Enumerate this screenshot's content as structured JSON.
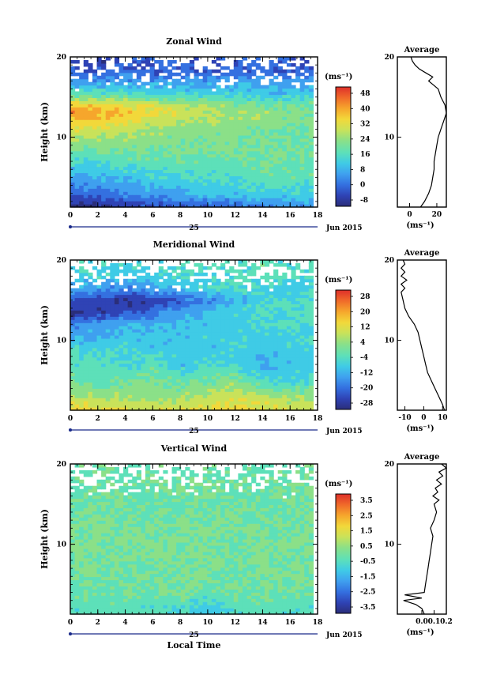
{
  "chart_data": [
    {
      "id": "zonal",
      "type": "heatmap",
      "title": "Zonal Wind",
      "ylabel": "Height (km)",
      "xlim": [
        0,
        18
      ],
      "ylim": [
        1.3,
        20
      ],
      "xticks": [
        "0",
        "2",
        "4",
        "6",
        "8",
        "10",
        "12",
        "14",
        "16",
        "18"
      ],
      "yticks": [
        "10",
        "20"
      ],
      "date_label": "25",
      "date_right": "Jun 2015",
      "unit": "(ms⁻¹)",
      "colorbar_ticks": [
        "48",
        "40",
        "32",
        "24",
        "16",
        "8",
        "0",
        "-8"
      ],
      "colorbar_range": [
        -8,
        48
      ],
      "avg": {
        "title": "Average",
        "xlim": [
          -9,
          27
        ],
        "xticks": [
          "0",
          "20"
        ],
        "unit": "(ms⁻¹)",
        "yticks": [
          "10",
          "20"
        ],
        "profile": [
          [
            1.3,
            8
          ],
          [
            2,
            11
          ],
          [
            3,
            14
          ],
          [
            4,
            16
          ],
          [
            5,
            17
          ],
          [
            6,
            18
          ],
          [
            7,
            18
          ],
          [
            8,
            19
          ],
          [
            9,
            20
          ],
          [
            10,
            21
          ],
          [
            11,
            23
          ],
          [
            12,
            25
          ],
          [
            13,
            27
          ],
          [
            14,
            26
          ],
          [
            15,
            23
          ],
          [
            16,
            21
          ],
          [
            17,
            14
          ],
          [
            17.5,
            17
          ],
          [
            18,
            12
          ],
          [
            18.5,
            7
          ],
          [
            19,
            4
          ],
          [
            19.5,
            2
          ],
          [
            20,
            1
          ]
        ]
      },
      "field": [
        [
          1.5,
          -4,
          -4,
          -2,
          0,
          2,
          2,
          4,
          6,
          8,
          8
        ],
        [
          3,
          2,
          4,
          6,
          8,
          10,
          12,
          12,
          14,
          14,
          14
        ],
        [
          5,
          8,
          10,
          12,
          14,
          16,
          16,
          16,
          18,
          18,
          18
        ],
        [
          8,
          18,
          18,
          20,
          20,
          20,
          20,
          20,
          20,
          20,
          20
        ],
        [
          11,
          30,
          28,
          26,
          24,
          22,
          22,
          22,
          20,
          20,
          20
        ],
        [
          13,
          38,
          36,
          34,
          30,
          28,
          26,
          24,
          24,
          22,
          22
        ],
        [
          14,
          34,
          32,
          30,
          28,
          26,
          24,
          22,
          20,
          20,
          20
        ],
        [
          15.5,
          18,
          16,
          16,
          14,
          14,
          14,
          14,
          12,
          12,
          12
        ],
        [
          17,
          6,
          8,
          8,
          8,
          8,
          8,
          8,
          8,
          8,
          8
        ],
        [
          18,
          4,
          2,
          4,
          2,
          2,
          2,
          4,
          2,
          2,
          4
        ],
        [
          19.5,
          -2,
          -2,
          0,
          2,
          4,
          -2,
          2,
          4,
          2,
          0
        ]
      ]
    },
    {
      "id": "meridional",
      "type": "heatmap",
      "title": "Meridional Wind",
      "ylabel": "Height (km)",
      "xlim": [
        0,
        18
      ],
      "ylim": [
        1.3,
        20
      ],
      "xticks": [
        "0",
        "2",
        "4",
        "6",
        "8",
        "10",
        "12",
        "14",
        "16",
        "18"
      ],
      "yticks": [
        "10",
        "20"
      ],
      "date_label": "25",
      "date_right": "Jun 2015",
      "unit": "(ms⁻¹)",
      "colorbar_ticks": [
        "28",
        "20",
        "12",
        "4",
        "-4",
        "-12",
        "-20",
        "-28"
      ],
      "colorbar_range": [
        -28,
        28
      ],
      "avg": {
        "title": "Average",
        "xlim": [
          -14,
          12
        ],
        "xticks": [
          "-10",
          "0",
          "10"
        ],
        "unit": "(ms⁻¹)",
        "yticks": [
          "10",
          "20"
        ],
        "profile": [
          [
            1.3,
            11
          ],
          [
            2,
            10
          ],
          [
            3,
            8
          ],
          [
            4,
            6
          ],
          [
            5,
            4
          ],
          [
            6,
            2
          ],
          [
            7,
            1
          ],
          [
            8,
            0
          ],
          [
            9,
            -1
          ],
          [
            10,
            -2
          ],
          [
            11,
            -3
          ],
          [
            12,
            -5
          ],
          [
            13,
            -8
          ],
          [
            14,
            -10
          ],
          [
            15,
            -11
          ],
          [
            16,
            -12
          ],
          [
            16.5,
            -10
          ],
          [
            17,
            -12
          ],
          [
            17.5,
            -9
          ],
          [
            18,
            -12
          ],
          [
            18.5,
            -10
          ],
          [
            19,
            -12
          ],
          [
            19.5,
            -10
          ],
          [
            20,
            -11
          ]
        ]
      },
      "field": [
        [
          1.5,
          12,
          10,
          8,
          8,
          8,
          10,
          12,
          10,
          8,
          8
        ],
        [
          3,
          6,
          4,
          4,
          2,
          4,
          6,
          8,
          6,
          4,
          4
        ],
        [
          5,
          0,
          -2,
          0,
          2,
          -2,
          0,
          2,
          -4,
          -6,
          -4
        ],
        [
          7,
          -4,
          -2,
          -6,
          -2,
          -8,
          -4,
          -6,
          -10,
          -8,
          -6
        ],
        [
          9,
          -6,
          -6,
          -4,
          -8,
          -6,
          -8,
          -6,
          -8,
          -6,
          -6
        ],
        [
          10.5,
          -10,
          -10,
          -8,
          -8,
          -8,
          -6,
          -6,
          -6,
          -6,
          -6
        ],
        [
          12,
          -14,
          -12,
          -10,
          -10,
          -8,
          -8,
          -6,
          -6,
          -4,
          -4
        ],
        [
          13.5,
          -24,
          -22,
          -20,
          -16,
          -12,
          -8,
          -6,
          -4,
          -4,
          -4
        ],
        [
          15,
          -20,
          -22,
          -24,
          -22,
          -18,
          -14,
          -10,
          -6,
          -4,
          -2
        ],
        [
          16.5,
          -10,
          -12,
          -14,
          -12,
          -8,
          -6,
          -4,
          -6,
          -8,
          -6
        ],
        [
          18,
          -8,
          -6,
          -8,
          -6,
          -4,
          -6,
          -4,
          -2,
          -4,
          -4
        ],
        [
          19.5,
          -6,
          -4,
          -6,
          -4,
          -4,
          -2,
          -4,
          -2,
          -4,
          -2
        ]
      ]
    },
    {
      "id": "vertical",
      "type": "heatmap",
      "title": "Vertical Wind",
      "ylabel": "Height (km)",
      "xlabel": "Local Time",
      "xlim": [
        0,
        18
      ],
      "ylim": [
        1.3,
        20
      ],
      "xticks": [
        "0",
        "2",
        "4",
        "6",
        "8",
        "10",
        "12",
        "14",
        "16",
        "18"
      ],
      "yticks": [
        "10",
        "20"
      ],
      "date_label": "25",
      "date_right": "Jun 2015",
      "unit": "(ms⁻¹)",
      "colorbar_ticks": [
        "3.5",
        "2.5",
        "1.5",
        "0.5",
        "-0.5",
        "-1.5",
        "-2.5",
        "-3.5"
      ],
      "colorbar_range": [
        -4,
        4
      ],
      "avg": {
        "title": "Average",
        "xlim": [
          -0.2,
          0.2
        ],
        "xticks": [
          "0.0",
          "0.1",
          "0.2"
        ],
        "unit": "(ms⁻¹)",
        "yticks": [
          "10",
          "20"
        ],
        "profile": [
          [
            1.3,
            0.02
          ],
          [
            2,
            0.0
          ],
          [
            2.5,
            -0.05
          ],
          [
            3,
            -0.15
          ],
          [
            3.3,
            0.0
          ],
          [
            3.7,
            -0.14
          ],
          [
            4,
            0.02
          ],
          [
            5,
            0.03
          ],
          [
            6,
            0.04
          ],
          [
            7,
            0.05
          ],
          [
            8,
            0.06
          ],
          [
            9,
            0.07
          ],
          [
            10,
            0.08
          ],
          [
            11,
            0.09
          ],
          [
            12,
            0.07
          ],
          [
            13,
            0.1
          ],
          [
            14,
            0.12
          ],
          [
            15,
            0.1
          ],
          [
            15.5,
            0.14
          ],
          [
            16,
            0.09
          ],
          [
            16.5,
            0.13
          ],
          [
            17,
            0.11
          ],
          [
            17.5,
            0.16
          ],
          [
            18,
            0.12
          ],
          [
            18.5,
            0.17
          ],
          [
            19,
            0.14
          ],
          [
            19.5,
            0.2
          ],
          [
            20,
            0.16
          ]
        ]
      },
      "field": [
        [
          2,
          -0.5,
          -0.3,
          -0.4,
          -0.6,
          -0.5,
          -1.2,
          -0.4,
          -0.3,
          -0.5,
          -0.4
        ],
        [
          4,
          0.0,
          -0.2,
          0.1,
          -0.1,
          0.0,
          -0.2,
          0.1,
          0.0,
          -0.1,
          0.0
        ],
        [
          7,
          0.0,
          0.1,
          -0.1,
          0.0,
          0.1,
          0.0,
          -0.1,
          0.1,
          0.0,
          0.1
        ],
        [
          10,
          0.1,
          0.0,
          0.1,
          0.2,
          0.0,
          0.1,
          0.0,
          0.1,
          0.2,
          0.0
        ],
        [
          13,
          0.0,
          0.1,
          0.0,
          -0.1,
          0.1,
          0.0,
          0.1,
          0.0,
          -0.1,
          0.1
        ],
        [
          16,
          -0.2,
          -0.1,
          0.0,
          -0.2,
          -0.1,
          0.0,
          -0.2,
          -0.1,
          0.0,
          -0.1
        ],
        [
          19,
          -0.1,
          0.0,
          -0.2,
          -0.1,
          0.0,
          -0.1,
          0.0,
          -0.2,
          -0.1,
          0.0
        ]
      ]
    }
  ],
  "colormap": [
    "#2b2e7a",
    "#2f43b5",
    "#3470e0",
    "#3fa0ef",
    "#3fcbe6",
    "#5de0b9",
    "#8be088",
    "#c9e25a",
    "#f2d83a",
    "#f6a62c",
    "#f06a2a",
    "#de2f2a"
  ]
}
